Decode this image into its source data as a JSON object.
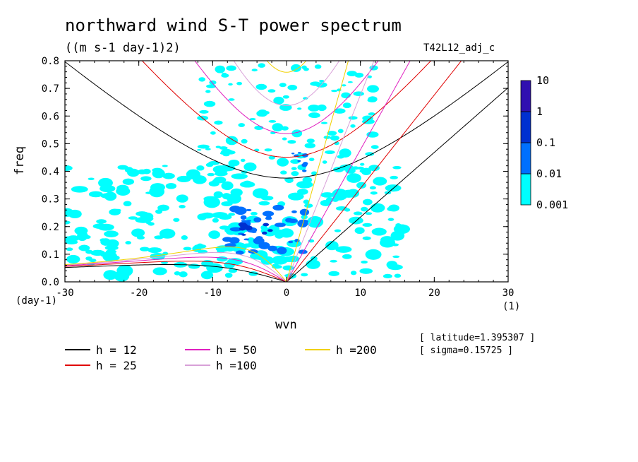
{
  "header": {
    "title": "northward wind S-T power spectrum",
    "units": "((m s-1 day-1)2)",
    "run_label": "T42L12_adj_c"
  },
  "axes": {
    "x_label": "wvn",
    "x_unit": "(1)",
    "y_label": "freq",
    "y_unit": "(day-1)",
    "x_ticks": [
      "-30",
      "-20",
      "-10",
      "0",
      "10",
      "20",
      "30"
    ],
    "y_ticks": [
      "0.0",
      "0.1",
      "0.2",
      "0.3",
      "0.4",
      "0.5",
      "0.6",
      "0.7",
      "0.8"
    ]
  },
  "legend": [
    {
      "label": "h = 12",
      "color": "#000000"
    },
    {
      "label": "h = 25",
      "color": "#e00000"
    },
    {
      "label": "h = 50",
      "color": "#e020c0"
    },
    {
      "label": "h =100",
      "color": "#d8a0d8"
    },
    {
      "label": "h =200",
      "color": "#f0d000"
    }
  ],
  "info": {
    "latitude": "[ latitude=1.395307 ]",
    "sigma": "[ sigma=0.15725 ]"
  },
  "colorbar": {
    "levels": [
      "0.001",
      "0.01",
      "0.1",
      "1",
      "10"
    ],
    "colors": [
      "#00ffff",
      "#0070ff",
      "#0030d0",
      "#3010b0"
    ]
  },
  "chart_data": {
    "type": "heatmap",
    "title": "northward wind S-T power spectrum",
    "xlabel": "wvn",
    "ylabel": "freq",
    "xlim": [
      -30,
      30
    ],
    "ylim": [
      0,
      0.8
    ],
    "contour_levels": [
      0.001,
      0.01,
      0.1,
      1,
      10
    ],
    "dispersion_curves": [
      "h = 12",
      "h = 25",
      "h = 50",
      "h =100",
      "h =200"
    ],
    "power_regions": [
      {
        "level": "0.001-0.01",
        "x_range": [
          -30,
          16
        ],
        "y_range": [
          0,
          0.8
        ],
        "note": "broad cyan field"
      },
      {
        "level": "0.01-0.1",
        "x_range": [
          -8,
          3
        ],
        "y_range": [
          0.05,
          0.3
        ]
      },
      {
        "level": "0.01-0.1",
        "x_range": [
          1,
          3
        ],
        "y_range": [
          0.4,
          0.48
        ]
      },
      {
        "level": "0.1-1",
        "x_range": [
          -6,
          -2
        ],
        "y_range": [
          0.17,
          0.22
        ]
      }
    ]
  }
}
